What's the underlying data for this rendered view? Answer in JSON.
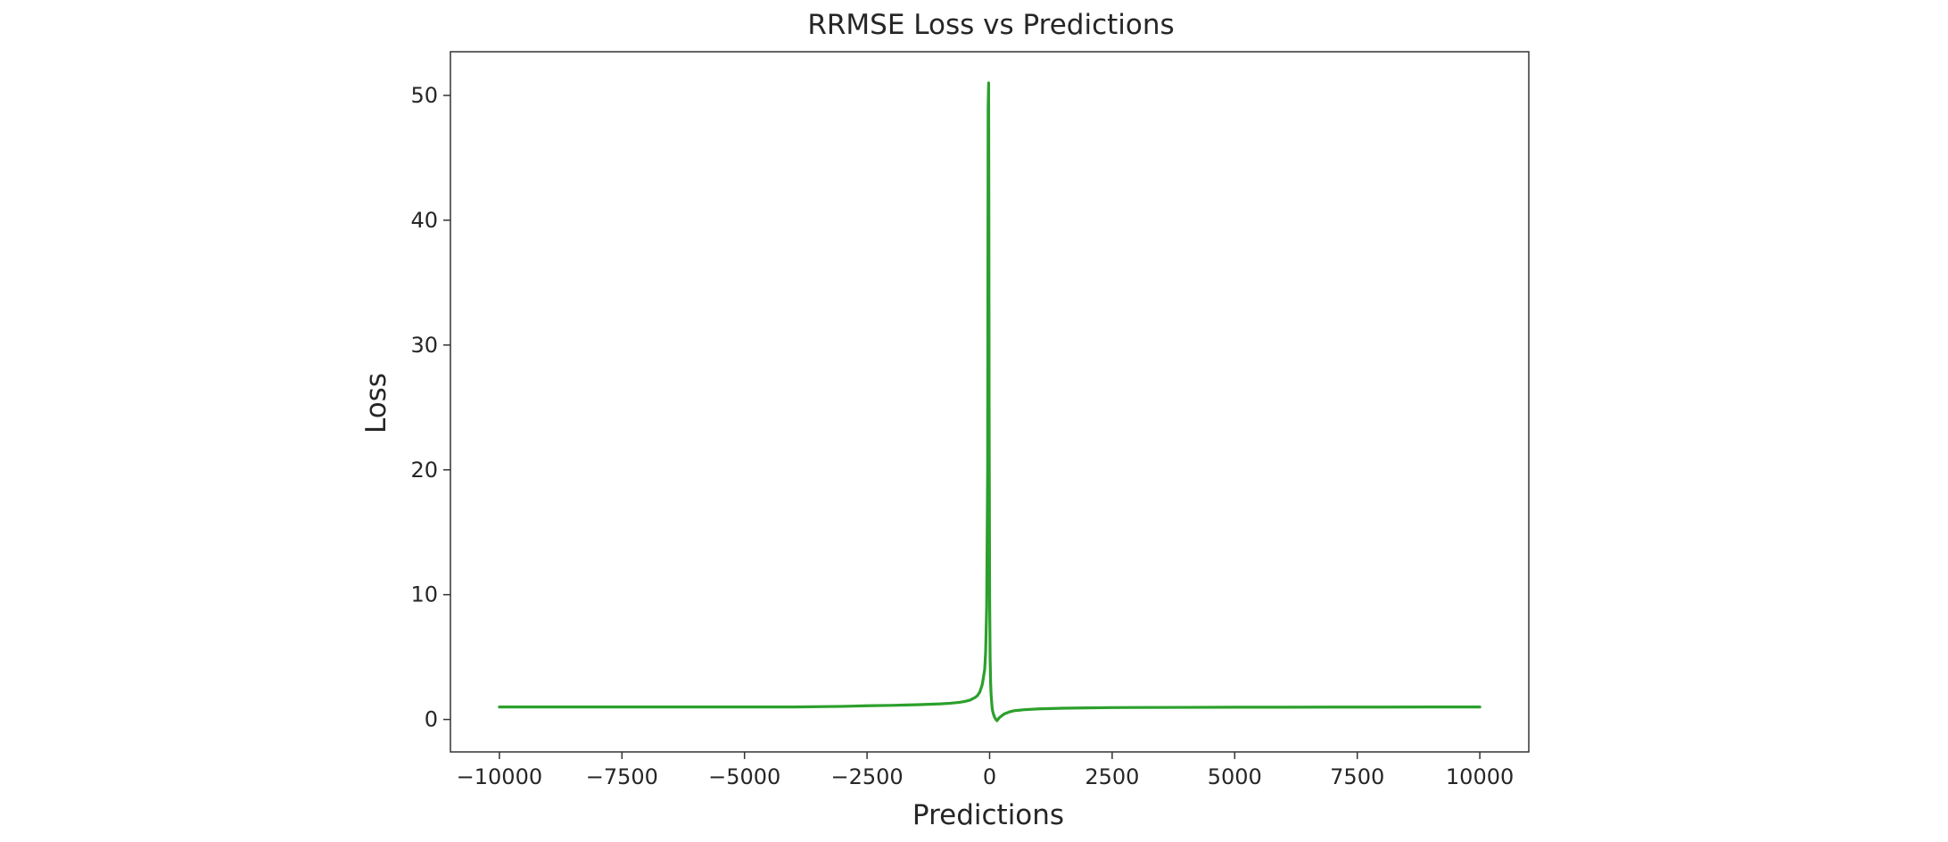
{
  "chart_data": {
    "type": "line",
    "title": "RRMSE Loss vs Predictions",
    "xlabel": "Predictions",
    "ylabel": "Loss",
    "xlim": [
      -10999,
      10999
    ],
    "ylim": [
      -2.6,
      53.5
    ],
    "grid": false,
    "xticks": [
      -10000,
      -7500,
      -5000,
      -2500,
      0,
      2500,
      5000,
      7500,
      10000
    ],
    "xtick_labels": [
      "−10000",
      "−7500",
      "−5000",
      "−2500",
      "0",
      "2500",
      "5000",
      "7500",
      "10000"
    ],
    "yticks": [
      0,
      10,
      20,
      30,
      40,
      50
    ],
    "ytick_labels": [
      "0",
      "10",
      "20",
      "30",
      "40",
      "50"
    ],
    "series": [
      {
        "color": "#2ca02c",
        "x": [
          -10000,
          -9000,
          -8000,
          -7000,
          -6000,
          -5000,
          -4000,
          -3000,
          -2500,
          -2000,
          -1500,
          -1000,
          -800,
          -600,
          -500,
          -400,
          -300,
          -250,
          -200,
          -150,
          -100,
          -80,
          -60,
          -40,
          -30,
          -20,
          -15,
          -10,
          0,
          10,
          20,
          30,
          40,
          50,
          60,
          80,
          100,
          120,
          150,
          200,
          300,
          400,
          500,
          700,
          1000,
          1500,
          2000,
          2500,
          3000,
          4000,
          5000,
          6000,
          7000,
          8000,
          9000,
          10000
        ],
        "y": [
          1.0,
          1.0,
          1.0,
          1.0,
          1.0,
          1.0,
          1.0,
          1.05,
          1.1,
          1.13,
          1.18,
          1.25,
          1.3,
          1.38,
          1.45,
          1.55,
          1.75,
          1.9,
          2.2,
          2.8,
          4.0,
          5.5,
          9.0,
          20.0,
          49.0,
          51.0,
          40.0,
          25.0,
          10.0,
          5.0,
          3.0,
          2.0,
          1.5,
          1.0,
          0.7,
          0.4,
          0.2,
          0.05,
          -0.1,
          0.15,
          0.45,
          0.6,
          0.7,
          0.78,
          0.85,
          0.9,
          0.93,
          0.95,
          0.96,
          0.97,
          0.98,
          0.98,
          0.99,
          0.99,
          1.0,
          1.0
        ]
      }
    ]
  }
}
